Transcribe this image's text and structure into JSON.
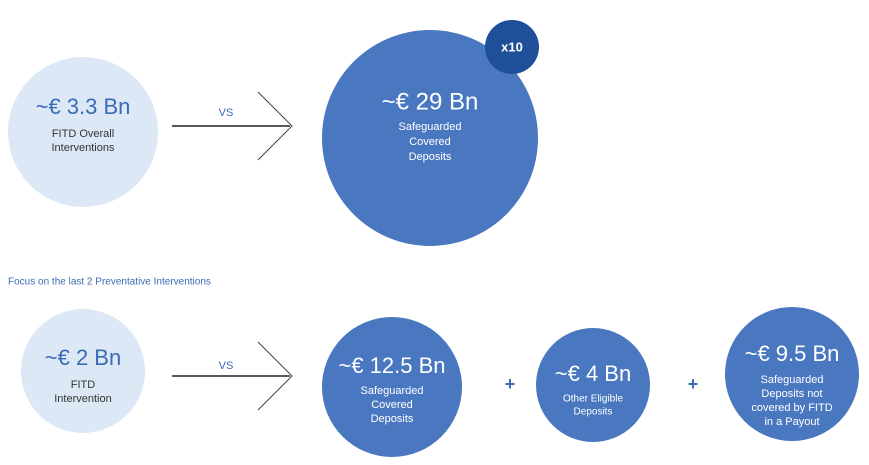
{
  "top": {
    "left": {
      "amount": "~€ 3.3 Bn",
      "lines": [
        "FITD Overall",
        "Interventions"
      ]
    },
    "vs": "VS",
    "right": {
      "amount": "~€ 29 Bn",
      "lines": [
        "Safeguarded",
        "Covered",
        "Deposits"
      ]
    },
    "multiplier": "x10"
  },
  "focus_label": "Focus on the last 2 Preventative Interventions",
  "bottom": {
    "left": {
      "amount": "~€ 2 Bn",
      "lines": [
        "FITD",
        "Intervention"
      ]
    },
    "vs": "VS",
    "parts": [
      {
        "amount": "~€ 12.5 Bn",
        "lines": [
          "Safeguarded",
          "Covered",
          "Deposits"
        ]
      },
      {
        "amount": "~€ 4 Bn",
        "lines": [
          "Other Eligible",
          "Deposits"
        ]
      },
      {
        "amount": "~€ 9.5 Bn",
        "lines": [
          "Safeguarded",
          "Deposits not",
          "covered by FITD",
          "in a Payout"
        ]
      }
    ],
    "plus": [
      "+",
      "+"
    ]
  }
}
